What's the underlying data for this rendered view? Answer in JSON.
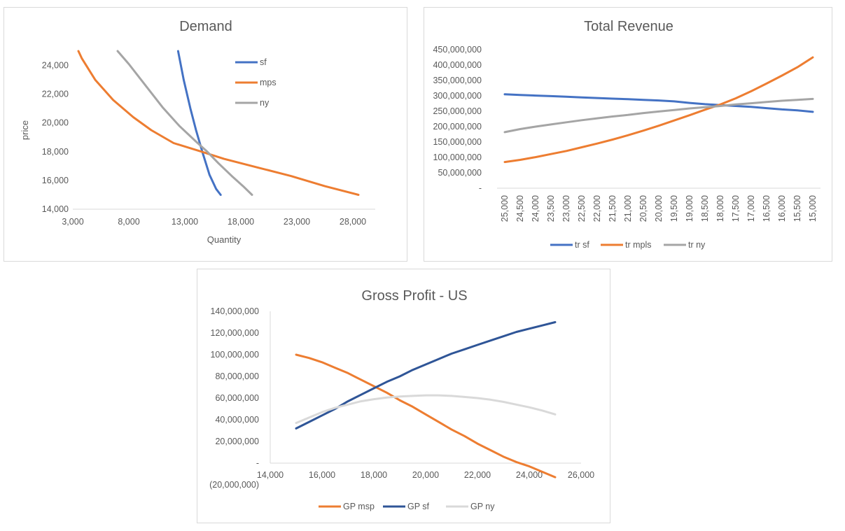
{
  "chart_data": [
    {
      "id": "demand",
      "type": "line",
      "title": "Demand",
      "xlabel": "Quantity",
      "ylabel": "price",
      "xlim": [
        3000,
        30000
      ],
      "ylim": [
        14000,
        25000
      ],
      "x_ticks": [
        "3,000",
        "8,000",
        "13,000",
        "18,000",
        "23,000",
        "28,000"
      ],
      "y_ticks": [
        "14,000",
        "16,000",
        "18,000",
        "20,000",
        "22,000",
        "24,000"
      ],
      "legend_position": "top-right",
      "series": [
        {
          "name": "sf",
          "color": "#4472C4",
          "points": [
            [
              12400,
              25000
            ],
            [
              12900,
              23000
            ],
            [
              13500,
              21000
            ],
            [
              14000,
              19500
            ],
            [
              14600,
              17900
            ],
            [
              15200,
              16400
            ],
            [
              15800,
              15400
            ],
            [
              16200,
              15000
            ]
          ]
        },
        {
          "name": "mps",
          "color": "#ED7D31",
          "points": [
            [
              3500,
              25000
            ],
            [
              3800,
              24500
            ],
            [
              5000,
              23000
            ],
            [
              6600,
              21600
            ],
            [
              8400,
              20400
            ],
            [
              10000,
              19500
            ],
            [
              12000,
              18600
            ],
            [
              14500,
              18000
            ],
            [
              16500,
              17500
            ],
            [
              19500,
              16900
            ],
            [
              22500,
              16300
            ],
            [
              25500,
              15600
            ],
            [
              28500,
              15000
            ]
          ]
        },
        {
          "name": "ny",
          "color": "#A5A5A5",
          "points": [
            [
              7000,
              25000
            ],
            [
              8000,
              24100
            ],
            [
              9500,
              22600
            ],
            [
              11000,
              21100
            ],
            [
              12500,
              19800
            ],
            [
              14000,
              18700
            ],
            [
              15000,
              18000
            ],
            [
              16000,
              17200
            ],
            [
              17200,
              16300
            ],
            [
              18200,
              15600
            ],
            [
              19000,
              15000
            ]
          ]
        }
      ]
    },
    {
      "id": "total-revenue",
      "type": "line",
      "title": "Total Revenue",
      "xlabel": "",
      "ylabel": "",
      "categories": [
        "25,000",
        "24,500",
        "24,000",
        "23,500",
        "23,000",
        "22,500",
        "22,000",
        "21,500",
        "21,000",
        "20,500",
        "20,000",
        "19,500",
        "19,000",
        "18,500",
        "18,000",
        "17,500",
        "17,000",
        "16,500",
        "16,000",
        "15,500",
        "15,000"
      ],
      "ylim": [
        0,
        450000000
      ],
      "y_ticks": [
        "-",
        "50,000,000",
        "100,000,000",
        "150,000,000",
        "200,000,000",
        "250,000,000",
        "300,000,000",
        "350,000,000",
        "400,000,000",
        "450,000,000"
      ],
      "legend_position": "bottom",
      "series": [
        {
          "name": "tr sf",
          "color": "#4472C4",
          "values": [
            305000000,
            303000000,
            301000000,
            299000000,
            297000000,
            295000000,
            293000000,
            291000000,
            289000000,
            287000000,
            285000000,
            282000000,
            277000000,
            273000000,
            270000000,
            267000000,
            264000000,
            260000000,
            256000000,
            253000000,
            248000000
          ]
        },
        {
          "name": "tr mpls",
          "color": "#ED7D31",
          "values": [
            85000000,
            92000000,
            101000000,
            111000000,
            121000000,
            133000000,
            145000000,
            158000000,
            172000000,
            187000000,
            203000000,
            220000000,
            237000000,
            255000000,
            272000000,
            292000000,
            315000000,
            340000000,
            366000000,
            393000000,
            425000000
          ]
        },
        {
          "name": "tr ny",
          "color": "#A5A5A5",
          "values": [
            182000000,
            192000000,
            200000000,
            207000000,
            214000000,
            221000000,
            227000000,
            233000000,
            238000000,
            244000000,
            249000000,
            254000000,
            259000000,
            263000000,
            267000000,
            272000000,
            276000000,
            280000000,
            284000000,
            287000000,
            290000000
          ]
        }
      ]
    },
    {
      "id": "gross-profit-us",
      "type": "line",
      "title": "Gross Profit - US",
      "xlabel": "",
      "ylabel": "",
      "xlim": [
        14000,
        26000
      ],
      "ylim": [
        -20000000,
        140000000
      ],
      "x_ticks": [
        "14,000",
        "16,000",
        "18,000",
        "20,000",
        "22,000",
        "24,000",
        "26,000"
      ],
      "y_ticks": [
        "(20,000,000)",
        "-",
        "20,000,000",
        "40,000,000",
        "60,000,000",
        "80,000,000",
        "100,000,000",
        "120,000,000",
        "140,000,000"
      ],
      "legend_position": "bottom",
      "series": [
        {
          "name": "GP msp",
          "color": "#ED7D31",
          "points": [
            [
              15000,
              100000000
            ],
            [
              15500,
              97000000
            ],
            [
              16000,
              93000000
            ],
            [
              16500,
              88000000
            ],
            [
              17000,
              83000000
            ],
            [
              17500,
              77000000
            ],
            [
              18000,
              71000000
            ],
            [
              18500,
              65000000
            ],
            [
              19000,
              58000000
            ],
            [
              19500,
              52000000
            ],
            [
              20000,
              45000000
            ],
            [
              20500,
              38000000
            ],
            [
              21000,
              31000000
            ],
            [
              21500,
              25000000
            ],
            [
              22000,
              18000000
            ],
            [
              22500,
              12000000
            ],
            [
              23000,
              6000000
            ],
            [
              23500,
              1000000
            ],
            [
              24000,
              -3000000
            ],
            [
              24500,
              -8000000
            ],
            [
              25000,
              -13000000
            ]
          ]
        },
        {
          "name": "GP sf",
          "color": "#2F5597",
          "points": [
            [
              15000,
              32000000
            ],
            [
              15500,
              38000000
            ],
            [
              16000,
              44000000
            ],
            [
              16500,
              50000000
            ],
            [
              17000,
              57000000
            ],
            [
              17500,
              63000000
            ],
            [
              18000,
              69000000
            ],
            [
              18500,
              75000000
            ],
            [
              19000,
              80000000
            ],
            [
              19500,
              86000000
            ],
            [
              20000,
              91000000
            ],
            [
              20500,
              96000000
            ],
            [
              21000,
              101000000
            ],
            [
              21500,
              105000000
            ],
            [
              22000,
              109000000
            ],
            [
              22500,
              113000000
            ],
            [
              23000,
              117000000
            ],
            [
              23500,
              121000000
            ],
            [
              24000,
              124000000
            ],
            [
              24500,
              127000000
            ],
            [
              25000,
              130000000
            ]
          ]
        },
        {
          "name": "GP  ny",
          "color": "#D9D9D9",
          "points": [
            [
              15000,
              37000000
            ],
            [
              15500,
              42000000
            ],
            [
              16000,
              47000000
            ],
            [
              16500,
              51000000
            ],
            [
              17000,
              54000000
            ],
            [
              17500,
              57000000
            ],
            [
              18000,
              59000000
            ],
            [
              18500,
              60500000
            ],
            [
              19000,
              61500000
            ],
            [
              19500,
              62000000
            ],
            [
              20000,
              62500000
            ],
            [
              20500,
              62500000
            ],
            [
              21000,
              62000000
            ],
            [
              21500,
              61000000
            ],
            [
              22000,
              60000000
            ],
            [
              22500,
              58500000
            ],
            [
              23000,
              56500000
            ],
            [
              23500,
              54000000
            ],
            [
              24000,
              51500000
            ],
            [
              24500,
              48500000
            ],
            [
              25000,
              45000000
            ]
          ]
        }
      ]
    }
  ]
}
